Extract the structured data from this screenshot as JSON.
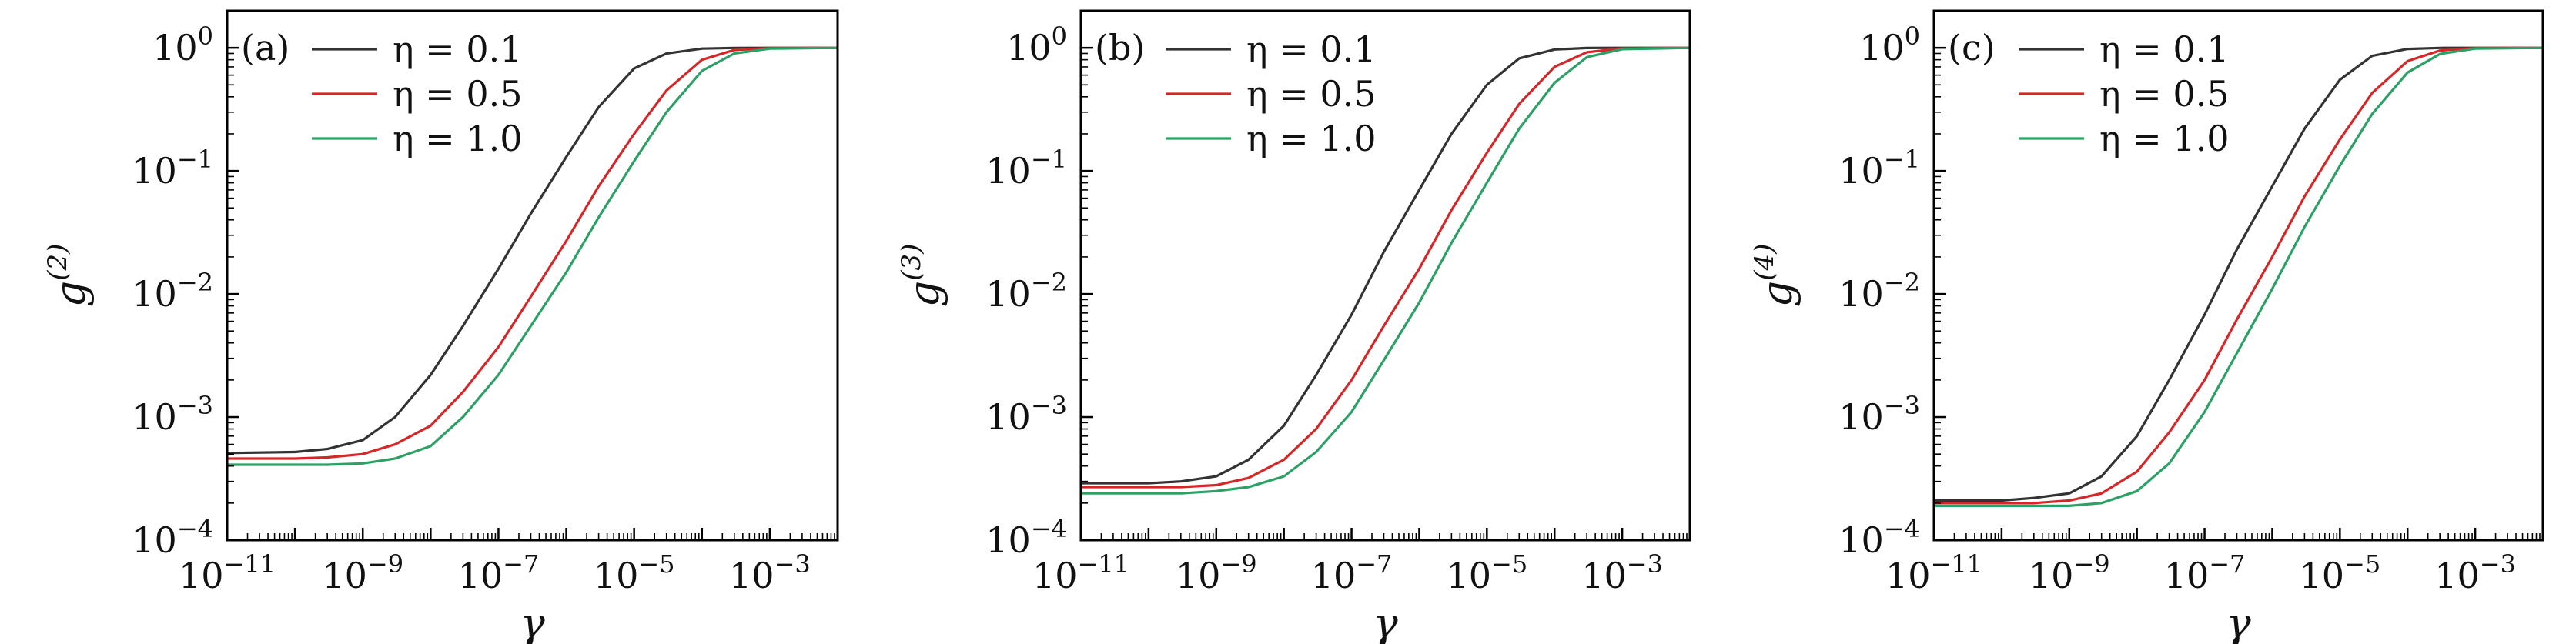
{
  "colors": {
    "eta_0_1": "#333333",
    "eta_0_5": "#d62728",
    "eta_1_0": "#2ca065"
  },
  "chart_data": [
    {
      "type": "line",
      "panel_label": "(a)",
      "xlabel": "γ",
      "ylabel": "g",
      "ylabel_sup": "(2)",
      "x_scale": "log",
      "y_scale": "log",
      "xlim": [
        1e-11,
        0.01
      ],
      "ylim": [
        0.0001,
        2
      ],
      "x_ticks": [
        {
          "base": "10",
          "exp": "−11",
          "value": 1e-11
        },
        {
          "base": "10",
          "exp": "−9",
          "value": 1e-09
        },
        {
          "base": "10",
          "exp": "−7",
          "value": 1e-07
        },
        {
          "base": "10",
          "exp": "−5",
          "value": 1e-05
        },
        {
          "base": "10",
          "exp": "−3",
          "value": 0.001
        }
      ],
      "y_ticks": [
        {
          "base": "10",
          "exp": "−4",
          "value": 0.0001
        },
        {
          "base": "10",
          "exp": "−3",
          "value": 0.001
        },
        {
          "base": "10",
          "exp": "−2",
          "value": 0.01
        },
        {
          "base": "10",
          "exp": "−1",
          "value": 0.1
        },
        {
          "base": "10",
          "exp": "0",
          "value": 1
        }
      ],
      "legend": "top-left",
      "series": [
        {
          "name": "η = 0.1",
          "color_key": "eta_0_1",
          "x": [
            1e-11,
            1e-10,
            3e-10,
            1e-09,
            3e-09,
            1e-08,
            3e-08,
            1e-07,
            3e-07,
            1e-06,
            3e-06,
            1e-05,
            3e-05,
            0.0001,
            0.0003,
            0.001,
            0.01
          ],
          "y": [
            0.00051,
            0.00052,
            0.00055,
            0.00065,
            0.001,
            0.0022,
            0.0055,
            0.016,
            0.045,
            0.13,
            0.33,
            0.68,
            0.9,
            0.985,
            0.998,
            1.0,
            1.0
          ]
        },
        {
          "name": "η = 0.5",
          "color_key": "eta_0_5",
          "x": [
            1e-11,
            1e-10,
            3e-10,
            1e-09,
            3e-09,
            1e-08,
            3e-08,
            1e-07,
            3e-07,
            1e-06,
            3e-06,
            1e-05,
            3e-05,
            0.0001,
            0.0003,
            0.001,
            0.01
          ],
          "y": [
            0.00046,
            0.00046,
            0.00047,
            0.0005,
            0.0006,
            0.00085,
            0.0016,
            0.0037,
            0.0095,
            0.027,
            0.075,
            0.2,
            0.45,
            0.8,
            0.96,
            0.995,
            1.0
          ]
        },
        {
          "name": "η = 1.0",
          "color_key": "eta_1_0",
          "x": [
            1e-11,
            1e-10,
            3e-10,
            1e-09,
            3e-09,
            1e-08,
            3e-08,
            1e-07,
            3e-07,
            1e-06,
            3e-06,
            1e-05,
            3e-05,
            0.0001,
            0.0003,
            0.001,
            0.01
          ],
          "y": [
            0.00041,
            0.00041,
            0.00041,
            0.00042,
            0.00046,
            0.00058,
            0.001,
            0.0022,
            0.0055,
            0.015,
            0.042,
            0.12,
            0.3,
            0.65,
            0.9,
            0.985,
            1.0
          ]
        }
      ]
    },
    {
      "type": "line",
      "panel_label": "(b)",
      "xlabel": "γ",
      "ylabel": "g",
      "ylabel_sup": "(3)",
      "x_scale": "log",
      "y_scale": "log",
      "xlim": [
        1e-11,
        0.01
      ],
      "ylim": [
        0.0001,
        2
      ],
      "x_ticks": [
        {
          "base": "10",
          "exp": "−11",
          "value": 1e-11
        },
        {
          "base": "10",
          "exp": "−9",
          "value": 1e-09
        },
        {
          "base": "10",
          "exp": "−7",
          "value": 1e-07
        },
        {
          "base": "10",
          "exp": "−5",
          "value": 1e-05
        },
        {
          "base": "10",
          "exp": "−3",
          "value": 0.001
        }
      ],
      "y_ticks": [
        {
          "base": "10",
          "exp": "−4",
          "value": 0.0001
        },
        {
          "base": "10",
          "exp": "−3",
          "value": 0.001
        },
        {
          "base": "10",
          "exp": "−2",
          "value": 0.01
        },
        {
          "base": "10",
          "exp": "−1",
          "value": 0.1
        },
        {
          "base": "10",
          "exp": "0",
          "value": 1
        }
      ],
      "legend": "top-left",
      "series": [
        {
          "name": "η = 0.1",
          "color_key": "eta_0_1",
          "x": [
            1e-11,
            1e-10,
            3e-10,
            1e-09,
            3e-09,
            1e-08,
            3e-08,
            1e-07,
            3e-07,
            1e-06,
            3e-06,
            1e-05,
            3e-05,
            0.0001,
            0.0003,
            0.001,
            0.01
          ],
          "y": [
            0.00029,
            0.00029,
            0.0003,
            0.00033,
            0.00045,
            0.00085,
            0.0022,
            0.0068,
            0.022,
            0.07,
            0.2,
            0.5,
            0.82,
            0.97,
            0.997,
            1.0,
            1.0
          ]
        },
        {
          "name": "η = 0.5",
          "color_key": "eta_0_5",
          "x": [
            1e-11,
            1e-10,
            3e-10,
            1e-09,
            3e-09,
            1e-08,
            3e-08,
            1e-07,
            3e-07,
            1e-06,
            3e-06,
            1e-05,
            3e-05,
            0.0001,
            0.0003,
            0.001,
            0.01
          ],
          "y": [
            0.00027,
            0.00027,
            0.00027,
            0.00028,
            0.00032,
            0.00045,
            0.0008,
            0.002,
            0.0055,
            0.016,
            0.048,
            0.14,
            0.35,
            0.7,
            0.92,
            0.99,
            1.0
          ]
        },
        {
          "name": "η = 1.0",
          "color_key": "eta_1_0",
          "x": [
            1e-11,
            1e-10,
            3e-10,
            1e-09,
            3e-09,
            1e-08,
            3e-08,
            1e-07,
            3e-07,
            1e-06,
            3e-06,
            1e-05,
            3e-05,
            0.0001,
            0.0003,
            0.001,
            0.01
          ],
          "y": [
            0.00024,
            0.00024,
            0.00024,
            0.00025,
            0.00027,
            0.00033,
            0.00052,
            0.0011,
            0.0029,
            0.0085,
            0.026,
            0.08,
            0.22,
            0.52,
            0.84,
            0.975,
            1.0
          ]
        }
      ]
    },
    {
      "type": "line",
      "panel_label": "(c)",
      "xlabel": "γ",
      "ylabel": "g",
      "ylabel_sup": "(4)",
      "x_scale": "log",
      "y_scale": "log",
      "xlim": [
        1e-11,
        0.01
      ],
      "ylim": [
        0.0001,
        2
      ],
      "x_ticks": [
        {
          "base": "10",
          "exp": "−11",
          "value": 1e-11
        },
        {
          "base": "10",
          "exp": "−9",
          "value": 1e-09
        },
        {
          "base": "10",
          "exp": "−7",
          "value": 1e-07
        },
        {
          "base": "10",
          "exp": "−5",
          "value": 1e-05
        },
        {
          "base": "10",
          "exp": "−3",
          "value": 0.001
        }
      ],
      "y_ticks": [
        {
          "base": "10",
          "exp": "−4",
          "value": 0.0001
        },
        {
          "base": "10",
          "exp": "−3",
          "value": 0.001
        },
        {
          "base": "10",
          "exp": "−2",
          "value": 0.01
        },
        {
          "base": "10",
          "exp": "−1",
          "value": 0.1
        },
        {
          "base": "10",
          "exp": "0",
          "value": 1
        }
      ],
      "legend": "top-left",
      "series": [
        {
          "name": "η = 0.1",
          "color_key": "eta_0_1",
          "x": [
            1e-11,
            1e-10,
            3e-10,
            1e-09,
            3e-09,
            1e-08,
            3e-08,
            1e-07,
            3e-07,
            1e-06,
            3e-06,
            1e-05,
            3e-05,
            0.0001,
            0.0003,
            0.001,
            0.01
          ],
          "y": [
            0.00021,
            0.00021,
            0.00022,
            0.00024,
            0.00033,
            0.0007,
            0.002,
            0.0068,
            0.023,
            0.075,
            0.22,
            0.55,
            0.86,
            0.98,
            0.998,
            1.0,
            1.0
          ]
        },
        {
          "name": "η = 0.5",
          "color_key": "eta_0_5",
          "x": [
            1e-11,
            1e-10,
            3e-10,
            1e-09,
            3e-09,
            1e-08,
            3e-08,
            1e-07,
            3e-07,
            1e-06,
            3e-06,
            1e-05,
            3e-05,
            0.0001,
            0.0003,
            0.001,
            0.01
          ],
          "y": [
            0.0002,
            0.0002,
            0.0002,
            0.00021,
            0.00024,
            0.00036,
            0.00075,
            0.002,
            0.0062,
            0.02,
            0.062,
            0.18,
            0.43,
            0.78,
            0.95,
            0.995,
            1.0
          ]
        },
        {
          "name": "η = 1.0",
          "color_key": "eta_1_0",
          "x": [
            1e-11,
            1e-10,
            3e-10,
            1e-09,
            3e-09,
            1e-08,
            3e-08,
            1e-07,
            3e-07,
            1e-06,
            3e-06,
            1e-05,
            3e-05,
            0.0001,
            0.0003,
            0.001,
            0.01
          ],
          "y": [
            0.00019,
            0.00019,
            0.00019,
            0.00019,
            0.0002,
            0.00025,
            0.00042,
            0.0011,
            0.0033,
            0.011,
            0.035,
            0.11,
            0.29,
            0.63,
            0.89,
            0.985,
            1.0
          ]
        }
      ]
    }
  ]
}
